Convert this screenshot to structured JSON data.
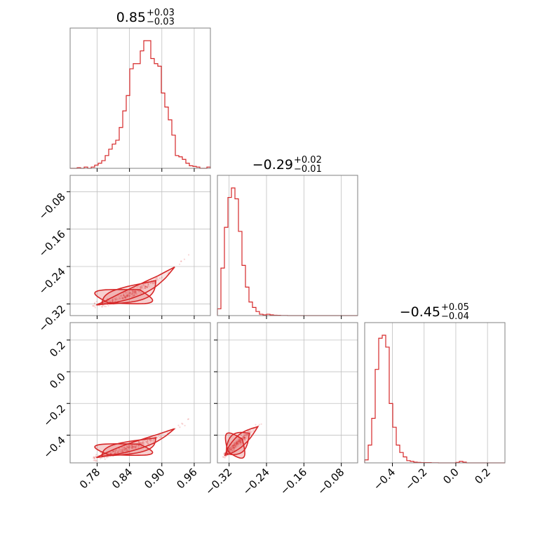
{
  "chart_data": {
    "type": "corner",
    "color": "#d62728",
    "grid": true,
    "params": [
      {
        "title": {
          "value": "0.85",
          "plus": "+0.03",
          "minus": "−0.03"
        },
        "range": [
          0.73,
          0.99
        ]
      },
      {
        "title": {
          "value": "−0.29",
          "plus": "+0.02",
          "minus": "−0.01"
        },
        "range": [
          -0.345,
          -0.045
        ]
      },
      {
        "title": {
          "value": "−0.45",
          "plus": "+0.05",
          "minus": "−0.04"
        },
        "range": [
          -0.575,
          0.31
        ]
      }
    ],
    "ticks": {
      "p0": [
        {
          "value": 0.78,
          "label": "0.78"
        },
        {
          "value": 0.84,
          "label": "0.84"
        },
        {
          "value": 0.9,
          "label": "0.90"
        },
        {
          "value": 0.96,
          "label": "0.96"
        }
      ],
      "p1": [
        {
          "value": -0.32,
          "label": "−0.32"
        },
        {
          "value": -0.24,
          "label": "−0.24"
        },
        {
          "value": -0.16,
          "label": "−0.16"
        },
        {
          "value": -0.08,
          "label": "−0.08"
        }
      ],
      "p2": [
        {
          "value": -0.4,
          "label": "−0.4"
        },
        {
          "value": -0.2,
          "label": "−0.2"
        },
        {
          "value": 0.0,
          "label": "0.0"
        },
        {
          "value": 0.2,
          "label": "0.2"
        }
      ]
    },
    "histograms": [
      {
        "param": 0,
        "counts": [
          0,
          0,
          0.5,
          0,
          1,
          0,
          1,
          2.5,
          4,
          6,
          10,
          15,
          19,
          22,
          32,
          45,
          57,
          78,
          82,
          82,
          92,
          100,
          100,
          86,
          82,
          80,
          59,
          48,
          38,
          26,
          10,
          9,
          7,
          4,
          2,
          1.5,
          1,
          0,
          0,
          1
        ]
      },
      {
        "param": 1,
        "counts": [
          5,
          35,
          65,
          87,
          94,
          86,
          62,
          37,
          21,
          10,
          6,
          3,
          1,
          0.5,
          1,
          0.5,
          0.3,
          0.2,
          0.1,
          0.1,
          0,
          0,
          0,
          0,
          0,
          0,
          0,
          0,
          0,
          0,
          0,
          0,
          0,
          0,
          0,
          0,
          0,
          0,
          0,
          0
        ]
      },
      {
        "param": 2,
        "counts": [
          2,
          12,
          30,
          63,
          84,
          86,
          78,
          40,
          24,
          12,
          7,
          4,
          1.5,
          1,
          0.5,
          0.3,
          0.2,
          0.2,
          0.2,
          0.1,
          0.1,
          0,
          0,
          0,
          0,
          0,
          0.3,
          1,
          0.5,
          0,
          0,
          0,
          0,
          0,
          0,
          0,
          0,
          0,
          0,
          0
        ]
      }
    ],
    "scatter_panels": [
      {
        "x_param": 0,
        "y_param": 1,
        "ridge": [
          [
            0.775,
            -0.323
          ],
          [
            0.8,
            -0.317
          ],
          [
            0.825,
            -0.307
          ],
          [
            0.85,
            -0.295
          ],
          [
            0.875,
            -0.28
          ],
          [
            0.9,
            -0.262
          ],
          [
            0.925,
            -0.24
          ],
          [
            0.95,
            -0.215
          ]
        ],
        "contours": [
          [
            0.015,
            0.004
          ],
          [
            0.03,
            0.008
          ],
          [
            0.05,
            0.012
          ]
        ]
      },
      {
        "x_param": 0,
        "y_param": 2,
        "ridge": [
          [
            0.775,
            -0.545
          ],
          [
            0.8,
            -0.522
          ],
          [
            0.825,
            -0.497
          ],
          [
            0.85,
            -0.468
          ],
          [
            0.875,
            -0.437
          ],
          [
            0.9,
            -0.4
          ],
          [
            0.925,
            -0.357
          ],
          [
            0.95,
            -0.3
          ]
        ],
        "contours": [
          [
            0.015,
            0.01
          ],
          [
            0.03,
            0.018
          ],
          [
            0.05,
            0.028
          ]
        ]
      },
      {
        "x_param": 1,
        "y_param": 2,
        "ridge": [
          [
            -0.33,
            -0.53
          ],
          [
            -0.32,
            -0.5
          ],
          [
            -0.305,
            -0.46
          ],
          [
            -0.29,
            -0.42
          ],
          [
            -0.275,
            -0.385
          ],
          [
            -0.26,
            -0.35
          ],
          [
            -0.245,
            -0.31
          ]
        ],
        "contours": [
          [
            0.006,
            0.03
          ],
          [
            0.012,
            0.05
          ],
          [
            0.018,
            0.075
          ]
        ]
      }
    ]
  }
}
